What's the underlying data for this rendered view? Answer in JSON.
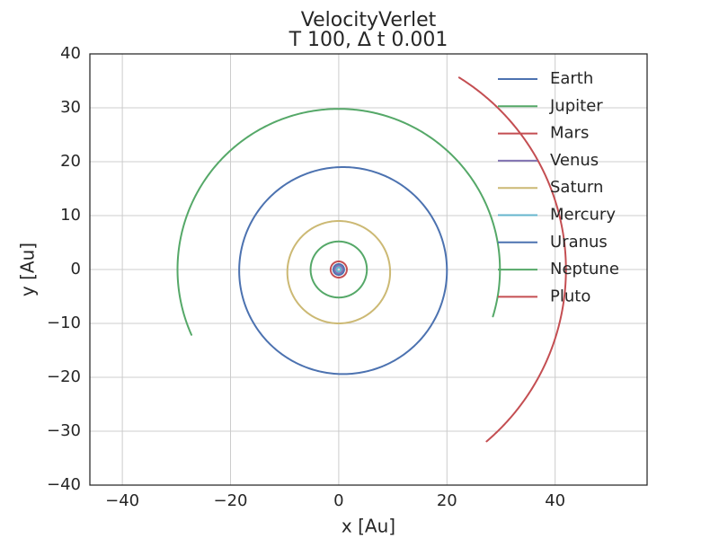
{
  "chart_data": {
    "type": "line",
    "title": [
      "VelocityVerlet",
      "T 100, ∆ t 0.001"
    ],
    "xlabel": "x [Au]",
    "ylabel": "y [Au]",
    "xlim": [
      -46,
      57
    ],
    "ylim": [
      -40,
      40
    ],
    "xticks": [
      -40,
      -20,
      0,
      20,
      40
    ],
    "yticks": [
      -40,
      -30,
      -20,
      -10,
      0,
      10,
      20,
      30,
      40
    ],
    "xtick_labels": [
      "−40",
      "−20",
      "0",
      "20",
      "40"
    ],
    "ytick_labels": [
      "−40",
      "−30",
      "−20",
      "−10",
      "0",
      "10",
      "20",
      "30",
      "40"
    ],
    "grid": true,
    "legend_position": "top-right",
    "series": [
      {
        "name": "Earth",
        "color": "#4c72b0",
        "orbit": {
          "cx": 0,
          "cy": 0,
          "r": 1.0,
          "start_deg": 0,
          "end_deg": 360
        }
      },
      {
        "name": "Jupiter",
        "color": "#55a868",
        "orbit": {
          "cx": 0,
          "cy": 0,
          "r": 5.2,
          "start_deg": 0,
          "end_deg": 360
        }
      },
      {
        "name": "Mars",
        "color": "#c44e52",
        "orbit": {
          "cx": 0,
          "cy": 0,
          "r": 1.5,
          "start_deg": 0,
          "end_deg": 360
        }
      },
      {
        "name": "Venus",
        "color": "#8172b2",
        "orbit": {
          "cx": 0,
          "cy": 0,
          "r": 0.72,
          "start_deg": 0,
          "end_deg": 360
        }
      },
      {
        "name": "Saturn",
        "color": "#ccb974",
        "orbit": {
          "cx": 0,
          "cy": -0.5,
          "r": 9.5,
          "start_deg": 0,
          "end_deg": 360
        }
      },
      {
        "name": "Mercury",
        "color": "#64b5cd",
        "orbit": {
          "cx": 0,
          "cy": 0,
          "r": 0.39,
          "start_deg": 0,
          "end_deg": 360
        }
      },
      {
        "name": "Uranus",
        "color": "#4c72b0",
        "orbit": {
          "cx": 0.8,
          "cy": -0.2,
          "r": 19.2,
          "start_deg": 0,
          "end_deg": 360
        }
      },
      {
        "name": "Neptune",
        "color": "#55a868",
        "orbit": {
          "cx": 0,
          "cy": 0,
          "r": 29.8,
          "start_deg": -17,
          "end_deg": 204
        }
      },
      {
        "name": "Pluto",
        "color": "#c44e52",
        "orbit": {
          "cx": 0,
          "cy": 0,
          "r": 42.0,
          "start_deg": -49.4,
          "end_deg": 58
        }
      }
    ]
  }
}
